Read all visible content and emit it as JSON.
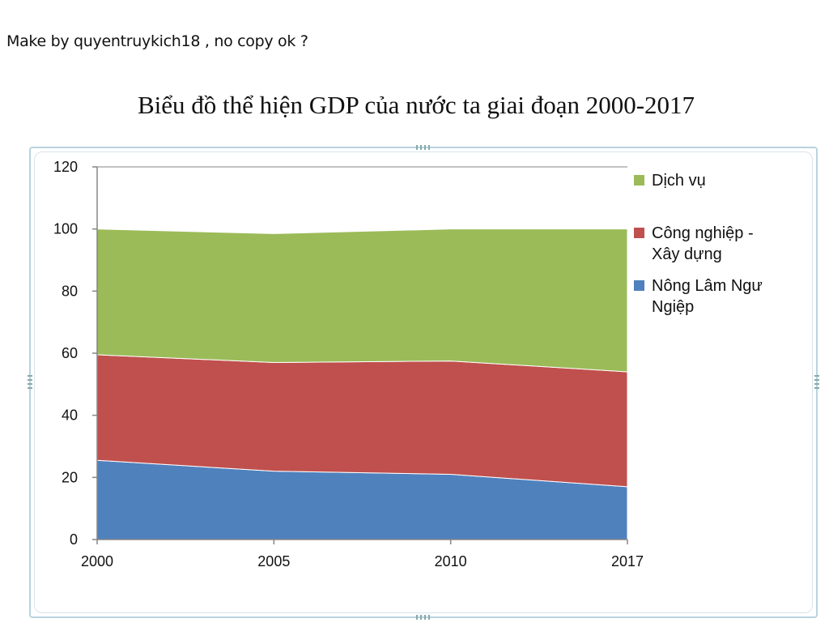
{
  "header": {
    "credit": "Make by quyentruykich18  , no copy ok ?"
  },
  "chart_data": {
    "type": "area",
    "stacked": true,
    "title": "Biểu đồ thể hiện GDP của nước ta giai đoạn 2000-2017",
    "xlabel": "",
    "ylabel": "",
    "x": [
      "2000",
      "2005",
      "2010",
      "2017"
    ],
    "ylim": [
      0,
      120
    ],
    "yticks": [
      "0",
      "20",
      "40",
      "60",
      "80",
      "100",
      "120"
    ],
    "grid": false,
    "legend_position": "right",
    "series": [
      {
        "name": "Nông Lâm Ngư Ngiệp",
        "legend_lines": [
          "Nông Lâm Ngư",
          "Ngiệp"
        ],
        "color": "#4f81bd",
        "values": [
          25.5,
          22,
          21,
          17
        ]
      },
      {
        "name": "Công nghiệp - Xây dựng",
        "legend_lines": [
          "Công nghiệp -",
          "Xây dựng"
        ],
        "color": "#c0504d",
        "values": [
          34,
          35,
          36.5,
          37
        ]
      },
      {
        "name": "Dịch vụ",
        "legend_lines": [
          "Dịch vụ"
        ],
        "color": "#9bbb59",
        "values": [
          40.5,
          41.5,
          42.5,
          46
        ]
      }
    ]
  }
}
